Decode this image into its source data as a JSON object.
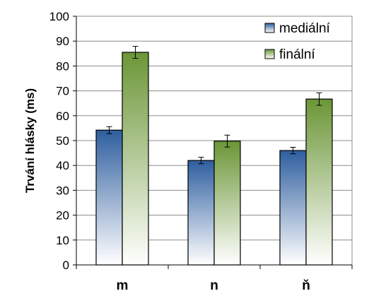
{
  "chart_data": {
    "type": "bar",
    "title": "",
    "xlabel": "",
    "ylabel": "Trvání hlásky (ms)",
    "ylim": [
      0,
      100
    ],
    "yticks": [
      0,
      10,
      20,
      30,
      40,
      50,
      60,
      70,
      80,
      90,
      100
    ],
    "ytick_labels": [
      "0",
      "10",
      "20",
      "30",
      "40",
      "50",
      "60",
      "70",
      "80",
      "90",
      "100"
    ],
    "categories": [
      "m",
      "n",
      "ň"
    ],
    "series": [
      {
        "name": "mediální",
        "values": [
          54.2,
          42.0,
          46.0
        ],
        "errors": [
          1.4,
          1.3,
          1.3
        ],
        "color_top": "#2e5e9f",
        "color_bottom": "#ffffff"
      },
      {
        "name": "finální",
        "values": [
          85.5,
          49.8,
          66.7
        ],
        "errors": [
          2.4,
          2.4,
          2.5
        ],
        "color_top": "#6b9636",
        "color_bottom": "#ffffff"
      }
    ],
    "grid": true,
    "legend": "top-right",
    "error_bars": true
  }
}
